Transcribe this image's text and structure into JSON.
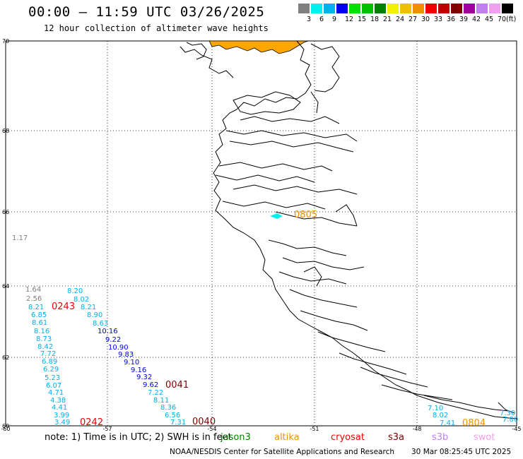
{
  "header": {
    "title": "00:00 – 11:59 UTC 03/26/2025",
    "subtitle": "12 hour collection of altimeter wave heights"
  },
  "colorbar": {
    "colors": [
      "#808080",
      "#00f0f0",
      "#00b0f0",
      "#0000f0",
      "#00e000",
      "#00c000",
      "#008000",
      "#f0f000",
      "#f0c000",
      "#f09000",
      "#f00000",
      "#c00000",
      "#800000",
      "#a000a0",
      "#c080f0",
      "#f0a0f0",
      "#000000"
    ],
    "labels": [
      "3",
      "6",
      "9",
      "12",
      "15",
      "18",
      "21",
      "24",
      "27",
      "30",
      "33",
      "36",
      "39",
      "42",
      "45",
      "70",
      "(ft)"
    ]
  },
  "axes": {
    "lat_labels": [
      "70",
      "68",
      "66",
      "64",
      "62",
      "60"
    ],
    "lon_labels": [
      "-60",
      "-57",
      "-54",
      "-51",
      "-48",
      "-45"
    ]
  },
  "observations": [
    {
      "text": "1.17",
      "color": "#808080"
    },
    {
      "text": "1.64",
      "color": "#808080"
    },
    {
      "text": "2.56",
      "color": "#808080"
    },
    {
      "text": "8.21",
      "color": "#00b0f0"
    },
    {
      "text": "6.85",
      "color": "#00b0f0"
    },
    {
      "text": "8.61",
      "color": "#00b0f0"
    },
    {
      "text": "8.16",
      "color": "#00b0f0"
    },
    {
      "text": "8.73",
      "color": "#00b0f0"
    },
    {
      "text": "8.42",
      "color": "#00b0f0"
    },
    {
      "text": "7.72",
      "color": "#00b0f0"
    },
    {
      "text": "6.89",
      "color": "#00b0f0"
    },
    {
      "text": "6.29",
      "color": "#00b0f0"
    },
    {
      "text": "5.23",
      "color": "#00b0f0"
    },
    {
      "text": "6.07",
      "color": "#00b0f0"
    },
    {
      "text": "4.71",
      "color": "#00b0f0"
    },
    {
      "text": "4.38",
      "color": "#00b0f0"
    },
    {
      "text": "4.41",
      "color": "#00b0f0"
    },
    {
      "text": "3.99",
      "color": "#00b0f0"
    },
    {
      "text": "3.49",
      "color": "#00b0f0"
    },
    {
      "text": "8.20",
      "color": "#00b0f0"
    },
    {
      "text": "8.02",
      "color": "#00b0f0"
    },
    {
      "text": "8.21",
      "color": "#00b0f0"
    },
    {
      "text": "8.90",
      "color": "#00b0f0"
    },
    {
      "text": "8.63",
      "color": "#00b0f0"
    },
    {
      "text": "10.16",
      "color": "#0000f0"
    },
    {
      "text": "9.22",
      "color": "#0000f0"
    },
    {
      "text": "10.90",
      "color": "#0000f0"
    },
    {
      "text": "9.83",
      "color": "#0000f0"
    },
    {
      "text": "9.10",
      "color": "#0000f0"
    },
    {
      "text": "9.16",
      "color": "#0000f0"
    },
    {
      "text": "9.32",
      "color": "#0000f0"
    },
    {
      "text": "9.62",
      "color": "#0000f0"
    },
    {
      "text": "7.22",
      "color": "#00b0f0"
    },
    {
      "text": "8.11",
      "color": "#00b0f0"
    },
    {
      "text": "8.36",
      "color": "#00b0f0"
    },
    {
      "text": "6.56",
      "color": "#00b0f0"
    },
    {
      "text": "7.31",
      "color": "#00b0f0"
    },
    {
      "text": "7.10",
      "color": "#00b0f0"
    },
    {
      "text": "8.02",
      "color": "#00b0f0"
    },
    {
      "text": "7.41",
      "color": "#00b0f0"
    },
    {
      "text": "7.30",
      "color": "#00b0f0"
    },
    {
      "text": "7.80",
      "color": "#00b0f0"
    }
  ],
  "pass_times": [
    {
      "text": "0243",
      "color": "#f00000"
    },
    {
      "text": "0041",
      "color": "#800000"
    },
    {
      "text": "0242",
      "color": "#f00000"
    },
    {
      "text": "0040",
      "color": "#800000"
    },
    {
      "text": "0805",
      "color": "#f09000"
    },
    {
      "text": "0804",
      "color": "#f09000"
    }
  ],
  "note": {
    "text": "note:  1) Time is in UTC; 2) SWH is in feet",
    "satellites": [
      {
        "name": "jason3",
        "color": "#008000"
      },
      {
        "name": "altika",
        "color": "#f09000"
      },
      {
        "name": "cryosat",
        "color": "#f00000"
      },
      {
        "name": "s3a",
        "color": "#800000"
      },
      {
        "name": "s3b",
        "color": "#c080f0"
      },
      {
        "name": "swot",
        "color": "#f0a0f0"
      }
    ]
  },
  "footer": {
    "credit": "NOAA/NESDIS Center for Satellite Applications and Research",
    "timestamp": "30 Mar 08:25:45 UTC 2025"
  },
  "colors": {
    "ice": "#ffa500",
    "coast": "#000000",
    "grid": "#000000"
  }
}
